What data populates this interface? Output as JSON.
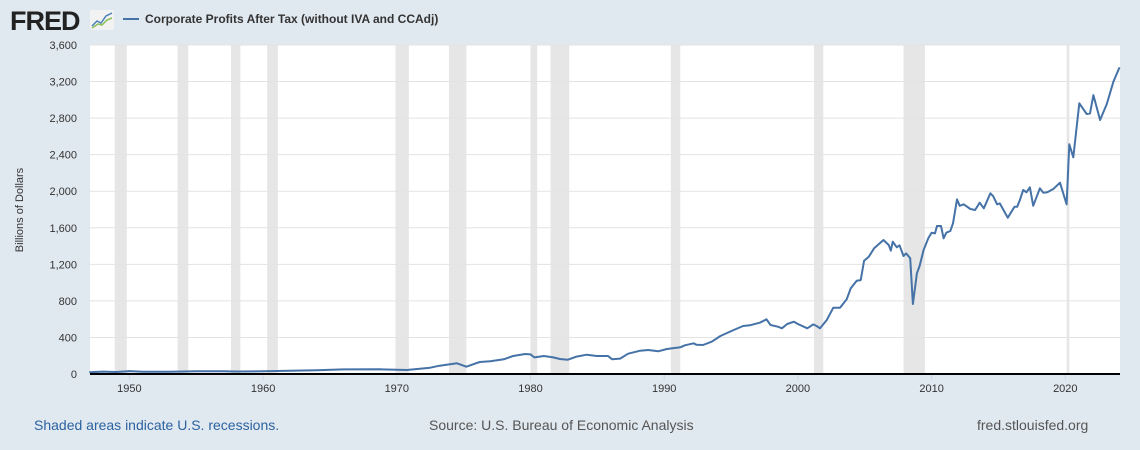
{
  "header": {
    "logo": "FRED",
    "logo_icon": "line-chart-icon"
  },
  "chart_data": {
    "type": "line",
    "title": "",
    "ylabel": "Billions of Dollars",
    "xlabel": "",
    "ylim": [
      0,
      3600
    ],
    "xlim": [
      1947,
      2024.1
    ],
    "yticks": [
      0,
      400,
      800,
      1200,
      1600,
      2000,
      2400,
      2800,
      3200,
      3600
    ],
    "ytick_labels": [
      "0",
      "400",
      "800",
      "1,200",
      "1,600",
      "2,000",
      "2,400",
      "2,800",
      "3,200",
      "3,600"
    ],
    "xticks": [
      1950,
      1960,
      1970,
      1980,
      1990,
      2000,
      2010,
      2020
    ],
    "xtick_labels": [
      "1950",
      "1960",
      "1970",
      "1980",
      "1990",
      "2000",
      "2010",
      "2020"
    ],
    "grid": true,
    "legend_position": "top-left",
    "series": [
      {
        "name": "Corporate Profits After Tax (without IVA and CCAdj)",
        "color": "#4572a7",
        "x": [
          1947,
          1948,
          1949,
          1950,
          1951,
          1953,
          1955,
          1957,
          1958,
          1960,
          1962,
          1964,
          1966,
          1968.75,
          1970.75,
          1972.5,
          1973.2,
          1974.5,
          1975.2,
          1976.2,
          1977,
          1978,
          1978.7,
          1979.6,
          1980,
          1980.3,
          1981,
          1981.7,
          1982.2,
          1982.8,
          1983.45,
          1984.2,
          1984.95,
          1985.8,
          1986.1,
          1986.7,
          1987.3,
          1988.2,
          1988.8,
          1989.55,
          1990.2,
          1991.2,
          1991.55,
          1992.2,
          1992.4,
          1992.9,
          1993.55,
          1994.2,
          1995.2,
          1995.9,
          1996.4,
          1997.15,
          1997.65,
          1997.95,
          1998.5,
          1998.8,
          1999.2,
          1999.7,
          2000,
          2000.7,
          2001.15,
          2001.4,
          2001.65,
          2002.15,
          2002.65,
          2003.15,
          2003.65,
          2003.95,
          2004.4,
          2004.7,
          2004.95,
          2005.3,
          2005.7,
          2006.4,
          2006.8,
          2006.95,
          2007.1,
          2007.4,
          2007.6,
          2007.9,
          2008.1,
          2008.4,
          2008.6,
          2008.9,
          2009.1,
          2009.4,
          2009.75,
          2010,
          2010.25,
          2010.4,
          2010.7,
          2010.9,
          2011.1,
          2011.4,
          2011.6,
          2011.9,
          2012.1,
          2012.4,
          2012.9,
          2013.25,
          2013.6,
          2013.9,
          2014.4,
          2014.6,
          2014.9,
          2015.1,
          2015.7,
          2016.2,
          2016.4,
          2016.6,
          2016.85,
          2017.1,
          2017.35,
          2017.6,
          2018.1,
          2018.35,
          2018.65,
          2019.1,
          2019.6,
          2020.1,
          2020.3,
          2020.6,
          2021.05,
          2021.6,
          2021.85,
          2022.1,
          2022.6,
          2023.1,
          2023.6,
          2024.05
        ],
        "values": [
          20,
          26,
          22,
          32,
          25,
          25,
          30,
          30,
          27,
          30,
          36,
          42,
          50,
          51,
          44,
          69,
          91,
          117,
          80,
          131,
          139,
          161,
          197,
          219,
          215,
          182,
          197,
          182,
          164,
          157,
          190,
          211,
          197,
          197,
          161,
          168,
          222,
          255,
          263,
          248,
          274,
          292,
          314,
          336,
          321,
          317,
          353,
          416,
          481,
          525,
          533,
          561,
          598,
          536,
          518,
          500,
          547,
          572,
          547,
          500,
          543,
          525,
          500,
          590,
          725,
          725,
          817,
          937,
          1021,
          1028,
          1240,
          1283,
          1375,
          1466,
          1411,
          1349,
          1448,
          1386,
          1408,
          1291,
          1320,
          1266,
          766,
          1102,
          1182,
          1357,
          1485,
          1546,
          1539,
          1619,
          1619,
          1485,
          1546,
          1565,
          1649,
          1911,
          1841,
          1857,
          1805,
          1794,
          1874,
          1813,
          1977,
          1947,
          1857,
          1867,
          1710,
          1830,
          1830,
          1904,
          2013,
          1988,
          2043,
          1841,
          2032,
          1984,
          1988,
          2024,
          2093,
          1857,
          2513,
          2371,
          2962,
          2845,
          2852,
          3052,
          2779,
          2954,
          3198,
          3355
        ]
      }
    ],
    "recessions": [
      [
        1948.9,
        1949.8
      ],
      [
        1953.6,
        1954.4
      ],
      [
        1957.6,
        1958.3
      ],
      [
        1960.3,
        1961.1
      ],
      [
        1969.9,
        1970.9
      ],
      [
        1973.9,
        1975.2
      ],
      [
        1980.0,
        1980.5
      ],
      [
        1981.5,
        1982.9
      ],
      [
        1990.5,
        1991.2
      ],
      [
        2001.2,
        2001.9
      ],
      [
        2007.9,
        2009.5
      ],
      [
        2020.1,
        2020.3
      ]
    ],
    "recession_color": "#e6e6e6"
  },
  "footer": {
    "recession_note": "Shaded areas indicate U.S. recessions.",
    "source": "Source: U.S. Bureau of Economic Analysis",
    "site": "fred.stlouisfed.org"
  }
}
